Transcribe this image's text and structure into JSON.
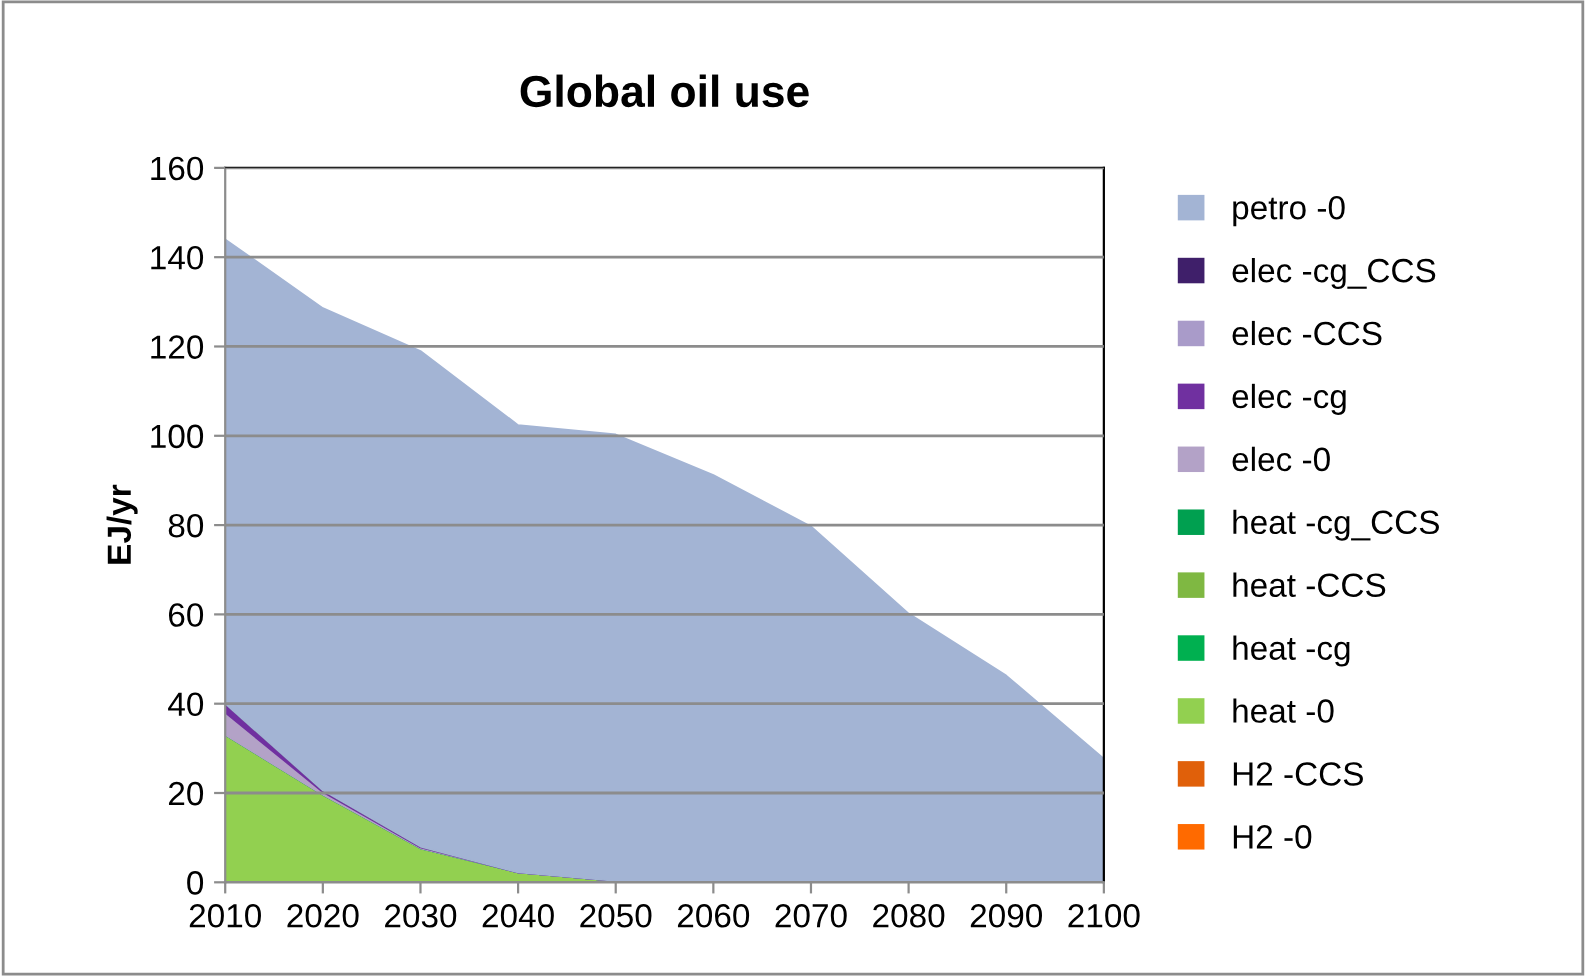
{
  "chart_data": {
    "type": "area",
    "stacked": true,
    "title": "Global oil use",
    "ylabel": "EJ/yr",
    "x": [
      2010,
      2020,
      2030,
      2040,
      2050,
      2060,
      2070,
      2080,
      2090,
      2100
    ],
    "xlim": [
      2010,
      2100
    ],
    "xticks": [
      2010,
      2020,
      2030,
      2040,
      2050,
      2060,
      2070,
      2080,
      2090,
      2100
    ],
    "ylim": [
      0,
      160
    ],
    "yticks": [
      0,
      20,
      40,
      60,
      80,
      100,
      120,
      140,
      160
    ],
    "grid": "y",
    "legend": "right",
    "series": [
      {
        "name": "H2 -0",
        "color": "#ff6a00",
        "values": [
          null,
          null,
          null,
          null,
          null,
          null,
          null,
          null,
          null,
          null
        ]
      },
      {
        "name": "H2 -CCS",
        "color": "#e0600a",
        "values": [
          null,
          null,
          null,
          null,
          null,
          null,
          null,
          null,
          null,
          null
        ]
      },
      {
        "name": "heat -0",
        "color": "#92d050",
        "values": [
          33,
          19.6,
          7.6,
          2.2,
          0.3,
          0,
          0,
          0,
          0,
          0
        ]
      },
      {
        "name": "heat -cg",
        "color": "#00b050",
        "values": [
          null,
          null,
          null,
          null,
          null,
          null,
          null,
          null,
          null,
          null
        ]
      },
      {
        "name": "heat -CCS",
        "color": "#7fb842",
        "values": [
          null,
          null,
          null,
          null,
          null,
          null,
          null,
          null,
          null,
          null
        ]
      },
      {
        "name": "heat -cg_CCS",
        "color": "#00a050",
        "values": [
          null,
          null,
          null,
          null,
          null,
          null,
          null,
          null,
          null,
          null
        ]
      },
      {
        "name": "elec -0",
        "color": "#b3a2c7",
        "values": [
          5,
          0.6,
          0.2,
          0,
          0,
          0,
          0,
          0,
          0,
          0
        ]
      },
      {
        "name": "elec -cg",
        "color": "#7030a0",
        "values": [
          2,
          0.4,
          0.2,
          0,
          0,
          0,
          0,
          0,
          0,
          0
        ]
      },
      {
        "name": "elec -CCS",
        "color": "#a99bc9",
        "values": [
          null,
          null,
          null,
          null,
          null,
          null,
          null,
          null,
          null,
          null
        ]
      },
      {
        "name": "elec -cg_CCS",
        "color": "#3f1f6a",
        "values": [
          null,
          null,
          null,
          null,
          null,
          null,
          null,
          null,
          null,
          null
        ]
      },
      {
        "name": "petro -0",
        "color": "#a3b4d4",
        "values": [
          104,
          108,
          111,
          100.2,
          100,
          91.2,
          79.7,
          60.2,
          46.3,
          27.7
        ]
      }
    ]
  }
}
